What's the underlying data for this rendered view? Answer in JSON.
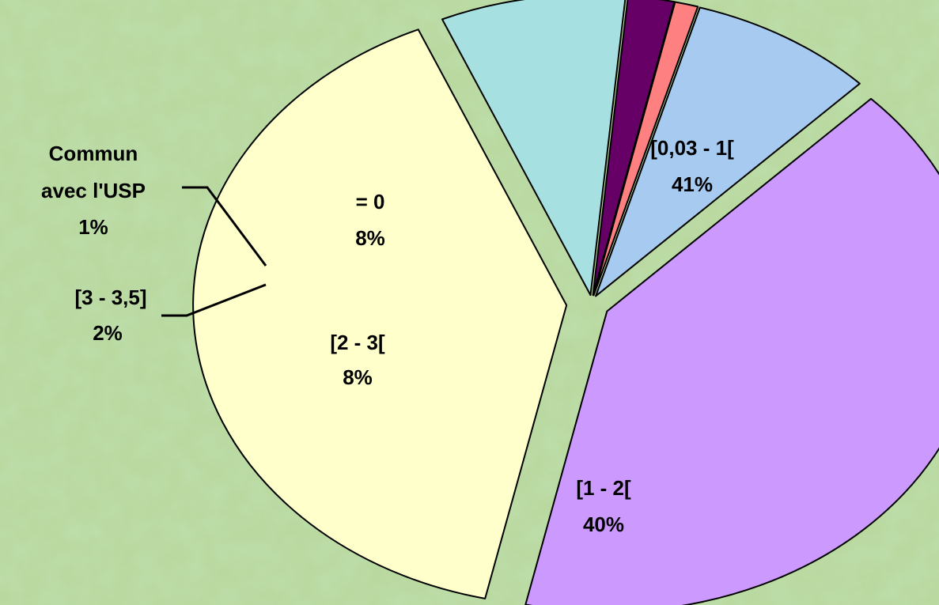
{
  "chart_data": {
    "type": "pie",
    "title": "",
    "slices": [
      {
        "label": "[0,03 - 1[",
        "percent_label": "41%",
        "value": 41,
        "color": "#cc99ff"
      },
      {
        "label": "[1 - 2[",
        "percent_label": "40%",
        "value": 40,
        "color": "#ffffcc"
      },
      {
        "label": "[2 - 3[",
        "percent_label": "8%",
        "value": 8,
        "color": "#a6e0e0"
      },
      {
        "label": "[3 - 3,5]",
        "percent_label": "2%",
        "value": 2,
        "color": "#660066"
      },
      {
        "label": "Commun avec l'USP",
        "label_line1": "Commun",
        "label_line2": "avec l'USP",
        "percent_label": "1%",
        "value": 1,
        "color": "#ff8080"
      },
      {
        "label": "= 0",
        "percent_label": "8%",
        "value": 8,
        "color": "#a6caf0"
      }
    ],
    "exploded": true,
    "legend": "none",
    "labels": "on-slice with leader lines for small slices"
  }
}
